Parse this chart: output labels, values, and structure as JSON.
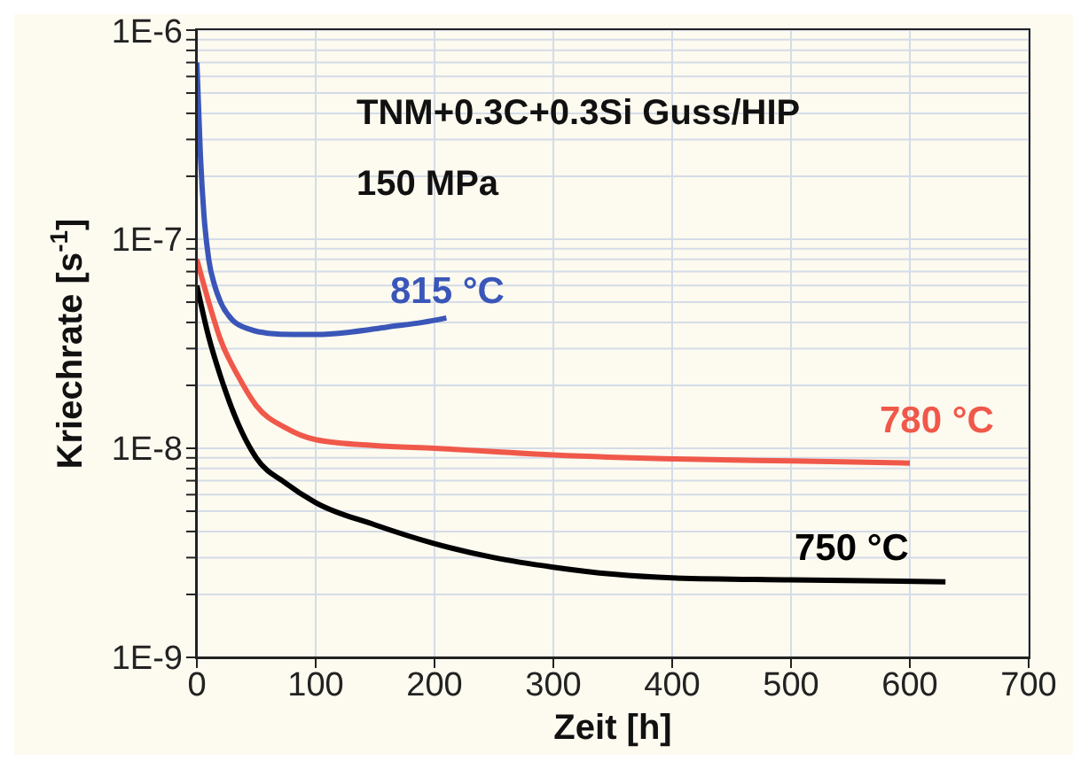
{
  "chart_data": {
    "type": "line",
    "title": "TNM+0.3C+0.3Si Guss/HIP",
    "subtitle": "150 MPa",
    "xlabel": "Zeit [h]",
    "ylabel": "Kriechrate [s$^{-1}$]",
    "series": [
      {
        "name": "815 °C",
        "color": "#3a56b8",
        "x": [
          0,
          3,
          6,
          10,
          15,
          20,
          30,
          45,
          60,
          80,
          100,
          130,
          160,
          190,
          210
        ],
        "values": [
          7e-07,
          2.5e-07,
          1.3e-07,
          8e-08,
          6e-08,
          5e-08,
          4.1e-08,
          3.7e-08,
          3.55e-08,
          3.5e-08,
          3.5e-08,
          3.6e-08,
          3.8e-08,
          4e-08,
          4.2e-08
        ]
      },
      {
        "name": "780 °C",
        "color": "#f0584a",
        "x": [
          0,
          10,
          20,
          35,
          50,
          75,
          100,
          150,
          200,
          300,
          400,
          500,
          600
        ],
        "values": [
          8e-08,
          5e-08,
          3.3e-08,
          2.2e-08,
          1.6e-08,
          1.25e-08,
          1.1e-08,
          1.03e-08,
          1e-08,
          9.3e-09,
          8.9e-09,
          8.7e-09,
          8.5e-09
        ]
      },
      {
        "name": "750 °C",
        "color": "#000000",
        "x": [
          0,
          10,
          20,
          35,
          50,
          75,
          100,
          150,
          200,
          250,
          300,
          350,
          400,
          500,
          630
        ],
        "values": [
          6e-08,
          3.4e-08,
          2.2e-08,
          1.3e-08,
          9e-09,
          6.8e-09,
          5.5e-09,
          4.3e-09,
          3.5e-09,
          3e-09,
          2.7e-09,
          2.5e-09,
          2.4e-09,
          2.35e-09,
          2.3e-09
        ]
      }
    ],
    "xlim": [
      0,
      700
    ],
    "xticks": [
      0,
      100,
      200,
      300,
      400,
      500,
      600,
      700
    ],
    "ylim": [
      1e-09,
      1e-06
    ],
    "log": "y",
    "yticks": [
      {
        "value": 1e-09,
        "label": "1E-9"
      },
      {
        "value": 2e-09,
        "label": null
      },
      {
        "value": 3e-09,
        "label": null
      },
      {
        "value": 4e-09,
        "label": null
      },
      {
        "value": 5e-09,
        "label": null
      },
      {
        "value": 6e-09,
        "label": null
      },
      {
        "value": 7e-09,
        "label": null
      },
      {
        "value": 8e-09,
        "label": null
      },
      {
        "value": 9e-09,
        "label": null
      },
      {
        "value": 1e-08,
        "label": "1E-8"
      },
      {
        "value": 2e-08,
        "label": null
      },
      {
        "value": 3e-08,
        "label": null
      },
      {
        "value": 4e-08,
        "label": null
      },
      {
        "value": 5e-08,
        "label": null
      },
      {
        "value": 6e-08,
        "label": null
      },
      {
        "value": 7e-08,
        "label": null
      },
      {
        "value": 8e-08,
        "label": null
      },
      {
        "value": 9e-08,
        "label": null
      },
      {
        "value": 1e-07,
        "label": "1E-7"
      },
      {
        "value": 2e-07,
        "label": null
      },
      {
        "value": 3e-07,
        "label": null
      },
      {
        "value": 4e-07,
        "label": null
      },
      {
        "value": 5e-07,
        "label": null
      },
      {
        "value": 6e-07,
        "label": null
      },
      {
        "value": 7e-07,
        "label": null
      },
      {
        "value": 8e-07,
        "label": null
      },
      {
        "value": 9e-07,
        "label": null
      },
      {
        "value": 1e-06,
        "label": "1E-6"
      }
    ],
    "grid": true,
    "marker": "none",
    "line_style": "solid"
  }
}
